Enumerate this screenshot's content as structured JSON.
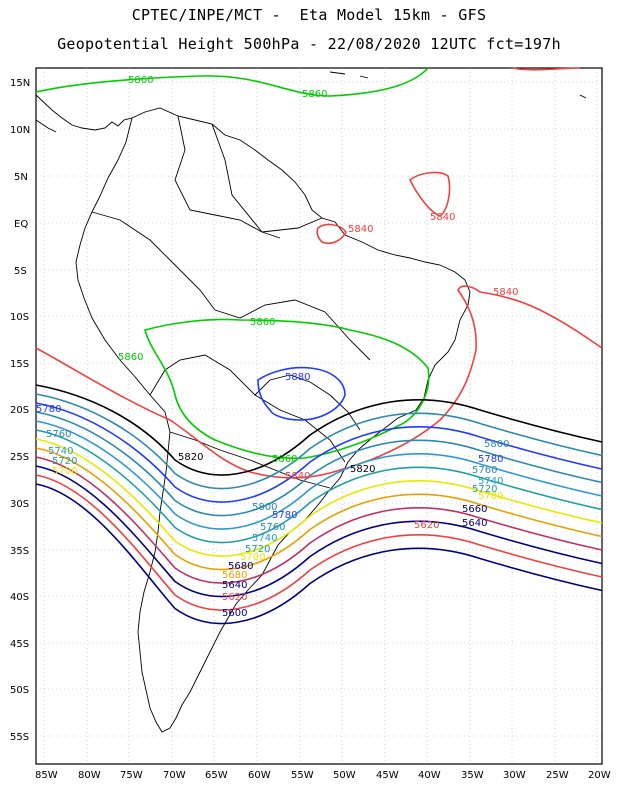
{
  "header": {
    "line1": "CPTEC/INPE/MCT -  Eta Model 15km - GFS",
    "line2": "Geopotential Height 500hPa - 22/08/2020 12UTC fct=197h"
  },
  "axes": {
    "lat_labels": [
      "15N",
      "10N",
      "5N",
      "EQ",
      "5S",
      "10S",
      "15S",
      "20S",
      "25S",
      "30S",
      "35S",
      "40S",
      "45S",
      "50S",
      "55S"
    ],
    "lon_labels": [
      "85W",
      "80W",
      "75W",
      "70W",
      "65W",
      "60W",
      "55W",
      "50W",
      "45W",
      "40W",
      "35W",
      "30W",
      "25W",
      "20W"
    ]
  },
  "contours": [
    {
      "value": "5860",
      "color": "#00cc00"
    },
    {
      "value": "5880",
      "color": "#1e3cff"
    },
    {
      "value": "5840",
      "color": "#f04040"
    },
    {
      "value": "5820",
      "color": "#000000"
    },
    {
      "value": "5800",
      "color": "#2a8ab0"
    },
    {
      "value": "5780",
      "color": "#1e3cff"
    },
    {
      "value": "5760",
      "color": "#2a8ab0"
    },
    {
      "value": "5740",
      "color": "#2a9ad0"
    },
    {
      "value": "5720",
      "color": "#1ea0a0"
    },
    {
      "value": "5700",
      "color": "#e8e800"
    },
    {
      "value": "5680",
      "color": "#e8a000"
    },
    {
      "value": "5660",
      "color": "#c03060"
    },
    {
      "value": "5640",
      "color": "#000080"
    },
    {
      "value": "5620",
      "color": "#f04040"
    },
    {
      "value": "5600",
      "color": "#000080"
    }
  ]
}
